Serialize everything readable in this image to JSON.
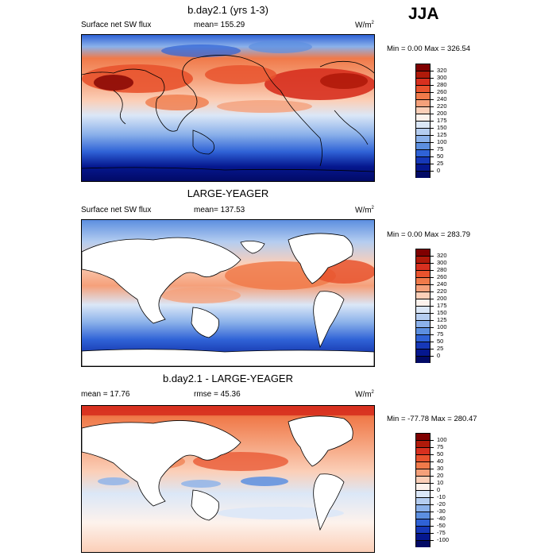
{
  "season": "JJA",
  "panels": [
    {
      "title": "b.day2.1 (yrs 1-3)",
      "left_label": "Surface net SW flux",
      "center_label": "mean= 155.29",
      "units": "W/m",
      "units_sup": "2",
      "minmax": "Min =   0.00 Max = 326.54",
      "palette": "abs",
      "levels": [
        "320",
        "300",
        "280",
        "260",
        "240",
        "220",
        "200",
        "175",
        "150",
        "125",
        "100",
        "75",
        "50",
        "25",
        "0"
      ]
    },
    {
      "title": "LARGE-YEAGER",
      "left_label": "Surface net SW flux",
      "center_label": "mean= 137.53",
      "units": "W/m",
      "units_sup": "2",
      "minmax": "Min =   0.00 Max = 283.79",
      "palette": "abs",
      "levels": [
        "320",
        "300",
        "280",
        "260",
        "240",
        "220",
        "200",
        "175",
        "150",
        "125",
        "100",
        "75",
        "50",
        "25",
        "0"
      ]
    },
    {
      "title": "b.day2.1 - LARGE-YEAGER",
      "left_label": "mean =  17.76",
      "center_label": "rmse =  45.36",
      "units": "W/m",
      "units_sup": "2",
      "minmax": "Min = -77.78 Max = 280.47",
      "palette": "diff",
      "levels": [
        "100",
        "75",
        "50",
        "40",
        "30",
        "20",
        "10",
        "0",
        "-10",
        "-20",
        "-30",
        "-40",
        "-50",
        "-75",
        "-100"
      ]
    }
  ],
  "colors": {
    "abs": [
      "#7f0000",
      "#b01a0a",
      "#d7301f",
      "#e8532e",
      "#f07a4a",
      "#f5a07a",
      "#fbcfb8",
      "#fdf2ec",
      "#dbe7f7",
      "#b5cdf0",
      "#8bb1ea",
      "#5c8fe0",
      "#2f62d6",
      "#1638b8",
      "#05178f",
      "#020a66"
    ],
    "diff": [
      "#7f0000",
      "#b01a0a",
      "#d7301f",
      "#e8532e",
      "#f07a4a",
      "#f5a07a",
      "#fbcfb8",
      "#fdf2ec",
      "#dbe7f7",
      "#b5cdf0",
      "#8bb1ea",
      "#5c8fe0",
      "#2f62d6",
      "#1638b8",
      "#05178f",
      "#020a66"
    ],
    "land_mask": "#ffffff"
  }
}
